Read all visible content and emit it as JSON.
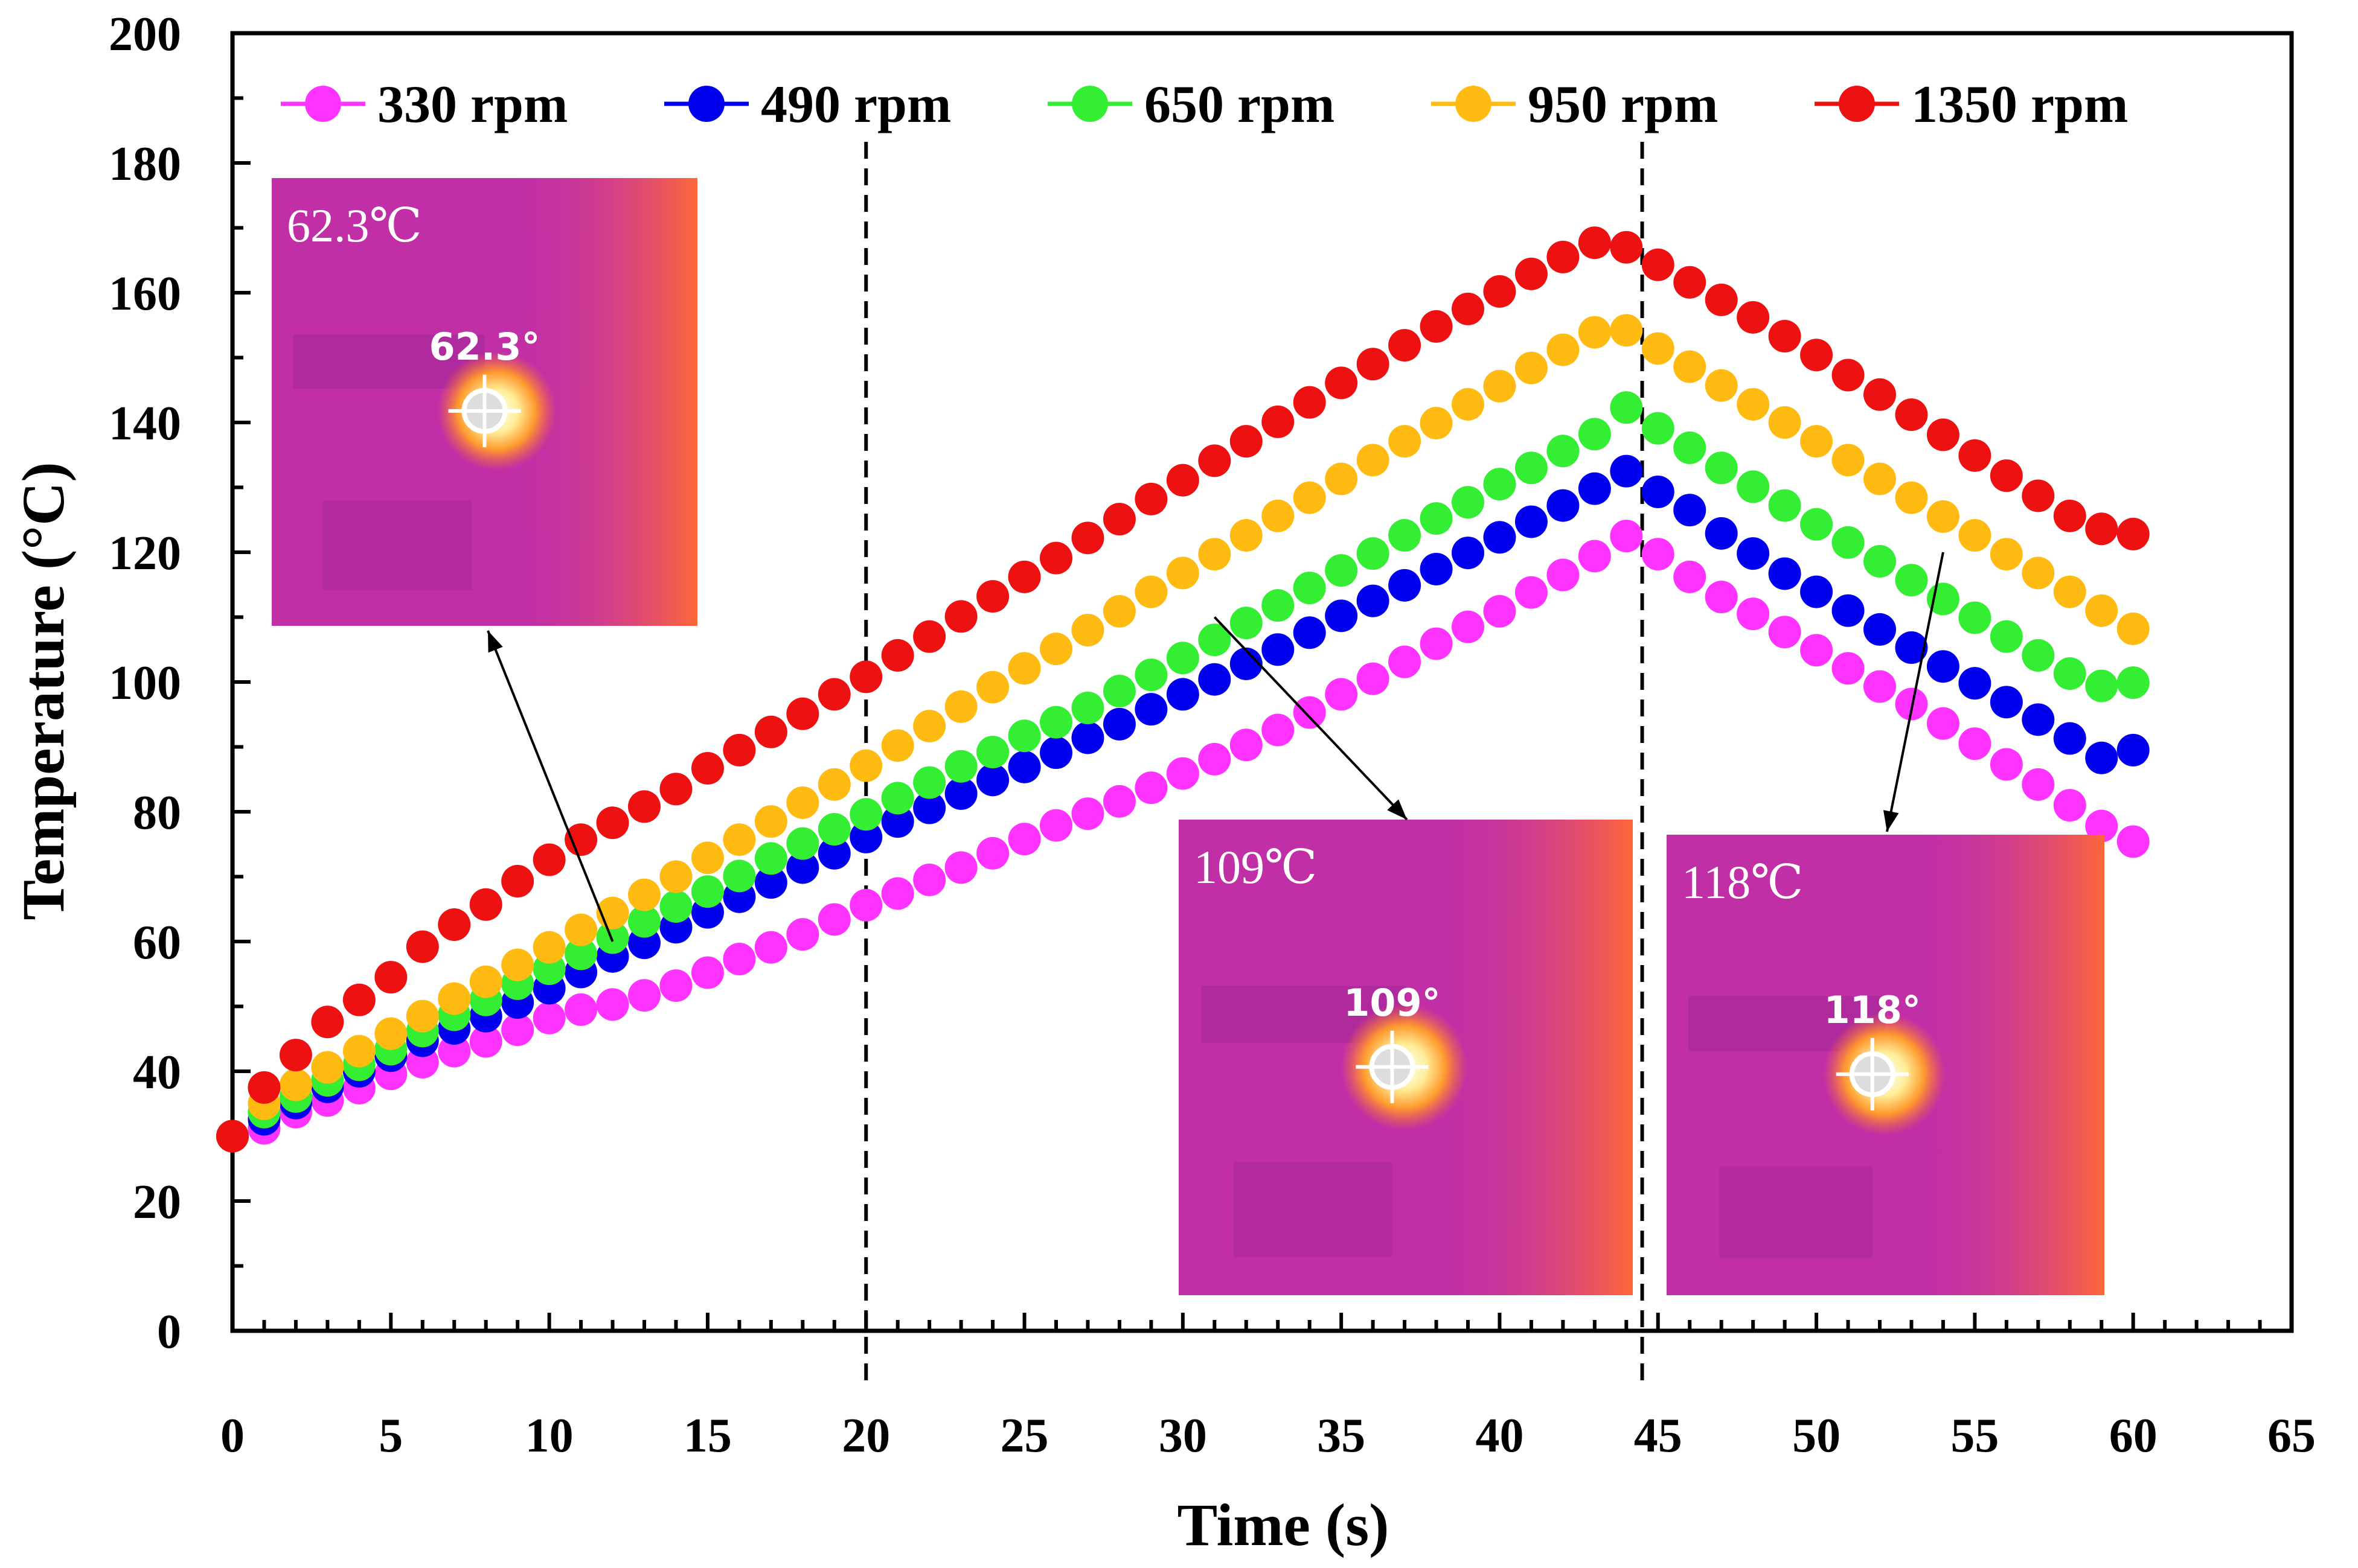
{
  "chart_data": {
    "type": "scatter",
    "title": "",
    "xlabel": "Time (s)",
    "ylabel": "Temperature (°C)",
    "xlim": [
      0,
      65
    ],
    "ylim": [
      0,
      200
    ],
    "xticks": [
      0,
      5,
      10,
      15,
      20,
      25,
      30,
      35,
      40,
      45,
      50,
      55,
      60,
      65
    ],
    "yticks": [
      0,
      20,
      40,
      60,
      80,
      100,
      120,
      140,
      160,
      180,
      200
    ],
    "grid": false,
    "legend_position": "top",
    "vlines": [
      20,
      44.5
    ],
    "x": [
      0,
      1,
      2,
      3,
      4,
      5,
      6,
      7,
      8,
      9,
      10,
      11,
      12,
      13,
      14,
      15,
      16,
      17,
      18,
      19,
      20,
      21,
      22,
      23,
      24,
      25,
      26,
      27,
      28,
      29,
      30,
      31,
      32,
      33,
      34,
      35,
      36,
      37,
      38,
      39,
      40,
      41,
      42,
      43,
      44,
      45,
      46,
      47,
      48,
      49,
      50,
      51,
      52,
      53,
      54,
      55,
      56,
      57,
      58,
      59,
      60
    ],
    "series": [
      {
        "name": "330 rpm",
        "color": "#ff33ff",
        "values": [
          30,
          31.2,
          33.7,
          35.5,
          37.4,
          39.6,
          41.4,
          43.1,
          44.6,
          46.4,
          48.2,
          49.5,
          50.3,
          51.7,
          53.2,
          55.2,
          57.3,
          59.1,
          61.1,
          63.4,
          65.6,
          67.4,
          69.5,
          71.4,
          73.6,
          75.8,
          77.9,
          79.7,
          81.6,
          83.7,
          85.9,
          88.1,
          90.3,
          92.6,
          95.3,
          98.1,
          100.5,
          103.1,
          105.9,
          108.5,
          110.9,
          113.8,
          116.5,
          119.4,
          122.5,
          119.7,
          116.2,
          113.1,
          110.5,
          107.7,
          104.9,
          102.1,
          99.3,
          96.6,
          93.6,
          90.5,
          87.3,
          84.2,
          81,
          77.8,
          75.4
        ]
      },
      {
        "name": "490 rpm",
        "color": "#0000ee",
        "values": [
          30,
          32.6,
          35.1,
          37.6,
          40,
          42.4,
          44.7,
          46.6,
          48.5,
          50.6,
          52.8,
          55.3,
          57.7,
          59.8,
          62.2,
          64.5,
          66.9,
          69.1,
          71.4,
          73.6,
          76.1,
          78.5,
          80.6,
          82.8,
          84.9,
          86.9,
          89.1,
          91.4,
          93.5,
          95.8,
          98.1,
          100.4,
          102.8,
          105,
          107.6,
          110.2,
          112.5,
          114.9,
          117.4,
          119.9,
          122.3,
          124.7,
          127.2,
          129.8,
          132.5,
          129.3,
          126.5,
          122.9,
          119.8,
          116.7,
          113.9,
          111,
          108.1,
          105.3,
          102.4,
          99.8,
          96.9,
          94.2,
          91.3,
          88.3,
          89.5
        ]
      },
      {
        "name": "650 rpm",
        "color": "#33ee33",
        "values": [
          30,
          33.7,
          36.1,
          38.6,
          41,
          43.4,
          46.2,
          48.7,
          51,
          53.5,
          55.8,
          58.1,
          60.6,
          63.1,
          65.4,
          67.7,
          70.1,
          72.8,
          75.1,
          77.3,
          79.6,
          82.1,
          84.5,
          87,
          89.2,
          91.7,
          93.8,
          96,
          98.6,
          101.1,
          103.7,
          106.5,
          109.1,
          111.8,
          114.5,
          117.2,
          119.8,
          122.6,
          125.2,
          127.7,
          130.5,
          133,
          135.6,
          138.2,
          142.3,
          139.1,
          136.1,
          133,
          130.1,
          127.2,
          124.3,
          121.5,
          118.6,
          115.7,
          112.8,
          109.9,
          107,
          104.1,
          101.3,
          99.4,
          99.9
        ]
      },
      {
        "name": "950 rpm",
        "color": "#ffbb11",
        "values": [
          30,
          35,
          37.9,
          40.6,
          43.1,
          45.8,
          48.5,
          51.2,
          53.8,
          56.4,
          59.1,
          61.8,
          64.4,
          67.2,
          70,
          72.9,
          75.7,
          78.5,
          81.4,
          84.2,
          87.1,
          90.2,
          93.2,
          96.2,
          99.2,
          102.1,
          105.1,
          108,
          110.9,
          113.9,
          116.8,
          119.7,
          122.6,
          125.6,
          128.4,
          131.3,
          134.2,
          137.1,
          139.9,
          142.8,
          145.6,
          148.4,
          151.2,
          153.9,
          154.2,
          151.4,
          148.6,
          145.7,
          142.8,
          140,
          137.1,
          134.2,
          131.3,
          128.4,
          125.5,
          122.6,
          119.7,
          116.8,
          113.9,
          111,
          108.2
        ]
      },
      {
        "name": "1350 rpm",
        "color": "#ee1111",
        "values": [
          30,
          37.5,
          42.5,
          47.6,
          51,
          54.5,
          59.2,
          62.6,
          65.7,
          69.3,
          72.6,
          75.7,
          78.3,
          80.8,
          83.5,
          86.7,
          89.5,
          92.3,
          95.1,
          98.1,
          100.8,
          104.1,
          107,
          110.1,
          113.2,
          116.2,
          119.1,
          122.2,
          125.1,
          128.2,
          131.1,
          134.1,
          137.1,
          140.1,
          143.1,
          146.1,
          149,
          151.9,
          154.8,
          157.5,
          160.2,
          162.9,
          165.5,
          167.7,
          167,
          164.3,
          161.6,
          158.9,
          156.2,
          153.3,
          150.4,
          147.3,
          144.3,
          141.2,
          138.1,
          134.9,
          131.8,
          128.7,
          125.6,
          123.6,
          122.8
        ]
      }
    ],
    "insets": [
      {
        "label": "62.3℃",
        "readout": "62.3°",
        "arrow_target": {
          "x": 12,
          "y": 60
        }
      },
      {
        "label": "109℃",
        "readout": "109°",
        "arrow_target": {
          "x": 31,
          "y": 110
        }
      },
      {
        "label": "118℃",
        "readout": "118°",
        "arrow_target": {
          "x": 54,
          "y": 120
        }
      }
    ]
  }
}
